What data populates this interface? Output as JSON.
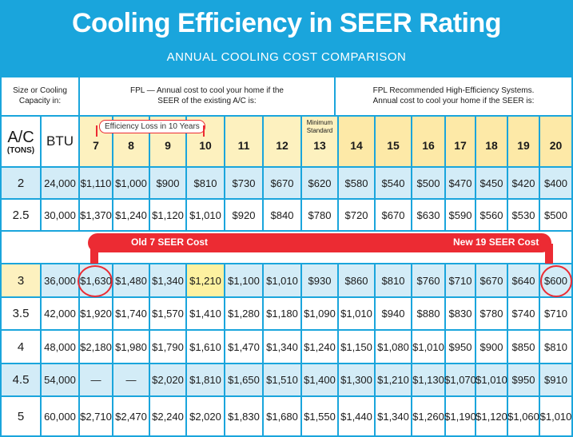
{
  "header": {
    "title": "Cooling Efficiency in SEER Rating",
    "subtitle": "ANNUAL COOLING COST COMPARISON"
  },
  "table": {
    "size_header": "Size or Cooling Capacity in:",
    "fpl_header": "FPL — Annual cost to cool your home if the SEER of the existing A/C is:",
    "recommended_header": "FPL Recommended High-Efficiency Systems. Annual cost to cool your home if the SEER is:",
    "ac_label": "A/C",
    "tons_label": "(TONS)",
    "btu_label": "BTU",
    "minimum_standard": "Minimum Standard",
    "efficiency_loss": "Efficiency Loss in 10 Years",
    "seer_columns": [
      "7",
      "8",
      "9",
      "10",
      "11",
      "12",
      "13",
      "14",
      "15",
      "16",
      "17",
      "18",
      "19",
      "20"
    ],
    "rows": [
      {
        "tons": "2",
        "btu": "24,000",
        "costs": [
          "$1,110",
          "$1,000",
          "$900",
          "$810",
          "$730",
          "$670",
          "$620",
          "$580",
          "$540",
          "$500",
          "$470",
          "$450",
          "$420",
          "$400"
        ]
      },
      {
        "tons": "2.5",
        "btu": "30,000",
        "costs": [
          "$1,370",
          "$1,240",
          "$1,120",
          "$1,010",
          "$920",
          "$840",
          "$780",
          "$720",
          "$670",
          "$630",
          "$590",
          "$560",
          "$530",
          "$500"
        ]
      },
      {
        "tons": "3",
        "btu": "36,000",
        "costs": [
          "$1,630",
          "$1,480",
          "$1,340",
          "$1,210",
          "$1,100",
          "$1,010",
          "$930",
          "$860",
          "$810",
          "$760",
          "$710",
          "$670",
          "$640",
          "$600"
        ]
      },
      {
        "tons": "3.5",
        "btu": "42,000",
        "costs": [
          "$1,920",
          "$1,740",
          "$1,570",
          "$1,410",
          "$1,280",
          "$1,180",
          "$1,090",
          "$1,010",
          "$940",
          "$880",
          "$830",
          "$780",
          "$740",
          "$710"
        ]
      },
      {
        "tons": "4",
        "btu": "48,000",
        "costs": [
          "$2,180",
          "$1,980",
          "$1,790",
          "$1,610",
          "$1,470",
          "$1,340",
          "$1,240",
          "$1,150",
          "$1,080",
          "$1,010",
          "$950",
          "$900",
          "$850",
          "$810"
        ]
      },
      {
        "tons": "4.5",
        "btu": "54,000",
        "costs": [
          "—",
          "—",
          "$2,020",
          "$1,810",
          "$1,650",
          "$1,510",
          "$1,400",
          "$1,300",
          "$1,210",
          "$1,130",
          "$1,070",
          "$1,010",
          "$950",
          "$910"
        ]
      },
      {
        "tons": "5",
        "btu": "60,000",
        "costs": [
          "$2,710",
          "$2,470",
          "$2,240",
          "$2,020",
          "$1,830",
          "$1,680",
          "$1,550",
          "$1,440",
          "$1,340",
          "$1,260",
          "$1,190",
          "$1,120",
          "$1,060",
          "$1,010"
        ]
      }
    ],
    "highlight": {
      "old_label": "Old 7 SEER Cost",
      "new_label": "New 19 SEER Cost"
    }
  },
  "colors": {
    "background": "#1aa5dc",
    "header_yellow": "#fdf1bf",
    "row_light": "#ffffff",
    "row_blue": "#d3ecf7",
    "accent_red": "#ec2b33"
  }
}
